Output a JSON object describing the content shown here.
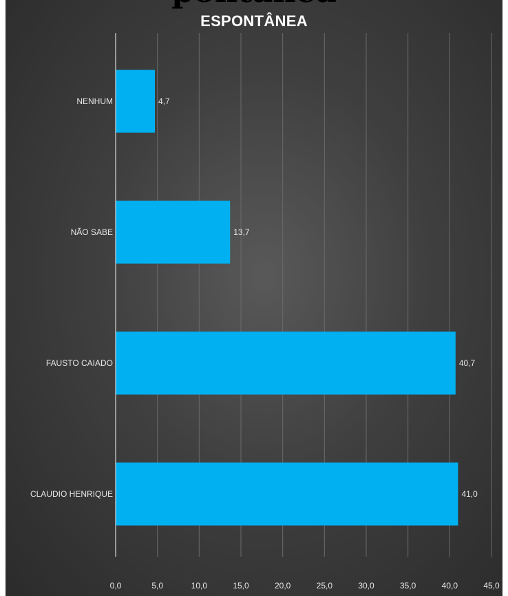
{
  "top_clip_text": "pontânea",
  "chart_data": {
    "type": "bar",
    "orientation": "horizontal",
    "title": "ESPONTÂNEA",
    "categories": [
      "NENHUM",
      "NÃO SABE",
      "FAUSTO CAIADO",
      "CLAUDIO HENRIQUE"
    ],
    "values": [
      4.7,
      13.7,
      40.7,
      41.0
    ],
    "value_labels": [
      "4,7",
      "13,7",
      "40,7",
      "41,0"
    ],
    "xlim": [
      0,
      45
    ],
    "x_ticks": [
      0,
      5,
      10,
      15,
      20,
      25,
      30,
      35,
      40,
      45
    ],
    "x_tick_labels": [
      "0,0",
      "5,0",
      "10,0",
      "15,0",
      "20,0",
      "25,0",
      "30,0",
      "35,0",
      "40,0",
      "45,0"
    ],
    "grid": true,
    "bar_color": "#00b0f0",
    "background_color": "#3a3a3a"
  }
}
